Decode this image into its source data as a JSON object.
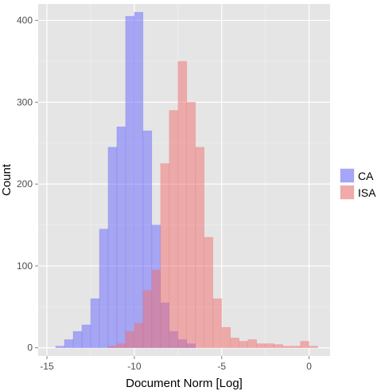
{
  "chart_data": {
    "type": "histogram",
    "xlabel": "Document Norm [Log]",
    "ylabel": "Count",
    "xlim": [
      -15.5,
      1.2
    ],
    "ylim": [
      -10,
      420
    ],
    "xticks": [
      -15,
      -10,
      -5,
      0
    ],
    "xtick_labels": [
      "-15",
      "-10",
      "-5",
      "0"
    ],
    "yticks": [
      0,
      100,
      200,
      300,
      400
    ],
    "ytick_labels": [
      "0",
      "100",
      "200",
      "300",
      "400"
    ],
    "bin_width": 0.5,
    "grid": true,
    "legend_position": "right",
    "series": [
      {
        "name": "CA",
        "color": "#6666ff",
        "bins_start": [
          -14.5,
          -14,
          -13.5,
          -13,
          -12.5,
          -12,
          -11.5,
          -11,
          -10.5,
          -10,
          -9.5,
          -9,
          -8.5,
          -8,
          -7.5,
          -7,
          -6.5,
          -6,
          -5.5,
          -5,
          -4.5,
          -4,
          -3.5,
          -3,
          -2.5,
          -2,
          -1.5,
          -1,
          -0.5,
          0
        ],
        "counts": [
          2,
          10,
          20,
          28,
          60,
          145,
          245,
          270,
          405,
          410,
          265,
          150,
          55,
          20,
          10,
          5,
          0,
          0,
          0,
          0,
          0,
          0,
          0,
          0,
          0,
          0,
          0,
          0,
          0,
          0
        ]
      },
      {
        "name": "ISA",
        "color": "#f26d6d",
        "bins_start": [
          -14.5,
          -14,
          -13.5,
          -13,
          -12.5,
          -12,
          -11.5,
          -11,
          -10.5,
          -10,
          -9.5,
          -9,
          -8.5,
          -8,
          -7.5,
          -7,
          -6.5,
          -6,
          -5.5,
          -5,
          -4.5,
          -4,
          -3.5,
          -3,
          -2.5,
          -2,
          -1.5,
          -1,
          -0.5,
          0
        ],
        "counts": [
          0,
          0,
          0,
          0,
          0,
          0,
          2,
          5,
          20,
          30,
          70,
          95,
          225,
          290,
          350,
          300,
          245,
          135,
          60,
          25,
          12,
          8,
          10,
          5,
          5,
          4,
          2,
          2,
          8,
          2
        ]
      }
    ]
  }
}
